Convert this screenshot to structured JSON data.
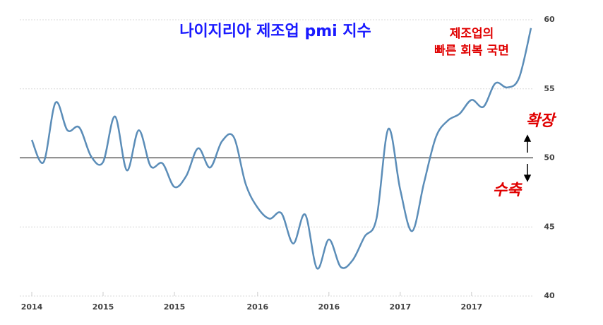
{
  "chart_data": {
    "type": "line",
    "title": "나이지리아 제조업 pmi 지수",
    "annotations": [
      "제조업의",
      "빠른 회복 국면",
      "확장",
      "수축"
    ],
    "categories": [
      "2014",
      null,
      null,
      null,
      null,
      null,
      "2015",
      null,
      null,
      null,
      null,
      null,
      "2015",
      null,
      null,
      null,
      null,
      null,
      null,
      "2016",
      null,
      null,
      null,
      null,
      null,
      "2016",
      null,
      null,
      null,
      null,
      null,
      "2017",
      null,
      null,
      null,
      null,
      null,
      "2017",
      null,
      null,
      null,
      null,
      null
    ],
    "series": [
      {
        "name": "PMI",
        "color": "#5b8db8",
        "values": [
          51.3,
          49.7,
          54.0,
          52.0,
          52.2,
          50.1,
          49.7,
          53.0,
          49.1,
          52.0,
          49.4,
          49.6,
          47.9,
          48.7,
          50.7,
          49.3,
          51.2,
          51.5,
          48.1,
          46.4,
          45.6,
          46.0,
          43.8,
          45.9,
          42.0,
          44.1,
          42.1,
          42.6,
          44.3,
          45.6,
          52.1,
          47.7,
          44.7,
          48.2,
          51.5,
          52.7,
          53.2,
          54.2,
          53.7,
          55.4,
          55.1,
          55.8,
          59.4
        ]
      }
    ],
    "ylim": [
      40,
      60
    ],
    "yticks": [
      40,
      45,
      50,
      55,
      60
    ],
    "grid": true,
    "reference_line": 50
  }
}
